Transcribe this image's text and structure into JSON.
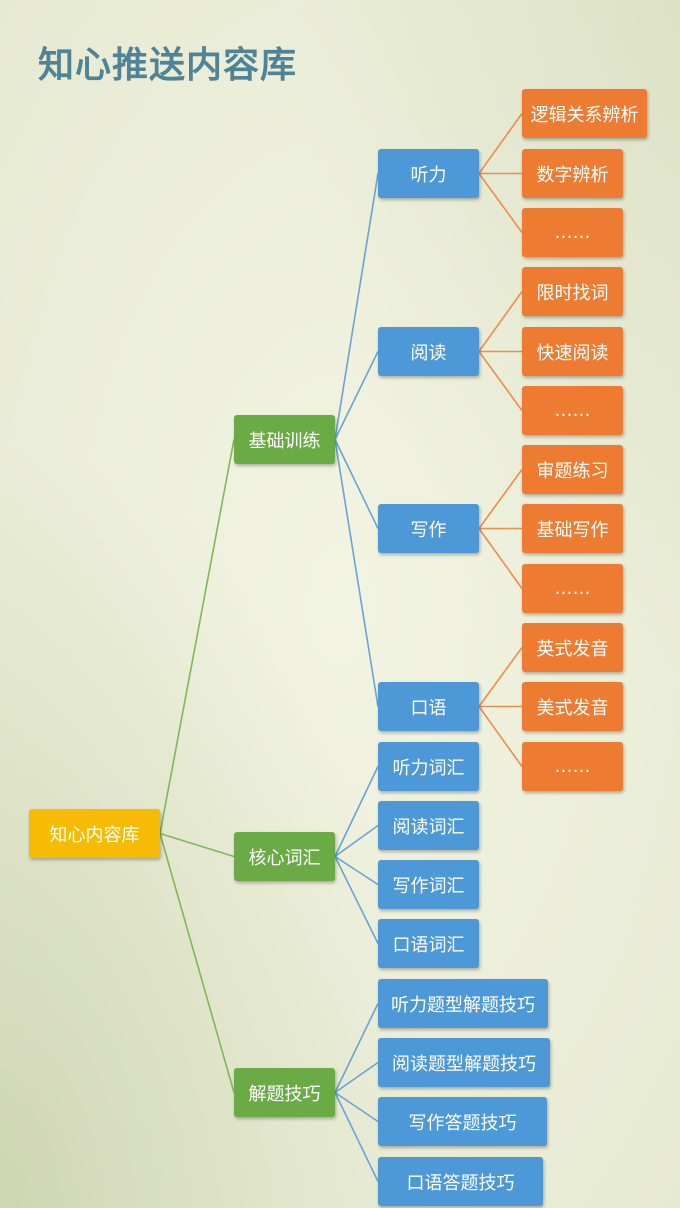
{
  "title": "知心推送内容库",
  "colors": {
    "root": "#f6bb04",
    "main": "#6aab45",
    "secondary": "#4d98d6",
    "leaf": "#ed7b31",
    "line_green": "#7fb85a",
    "line_blue": "#6aa3d6",
    "line_orange": "#ee8d4a"
  },
  "tree": {
    "label": "知心内容库",
    "children": [
      {
        "label": "基础训练",
        "children": [
          {
            "label": "听力",
            "children": [
              {
                "label": "逻辑关系辨析"
              },
              {
                "label": "数字辨析"
              },
              {
                "label": "……"
              }
            ]
          },
          {
            "label": "阅读",
            "children": [
              {
                "label": "限时找词"
              },
              {
                "label": "快速阅读"
              },
              {
                "label": "……"
              }
            ]
          },
          {
            "label": "写作",
            "children": [
              {
                "label": "审题练习"
              },
              {
                "label": "基础写作"
              },
              {
                "label": "……"
              }
            ]
          },
          {
            "label": "口语",
            "children": [
              {
                "label": "英式发音"
              },
              {
                "label": "美式发音"
              },
              {
                "label": "……"
              }
            ]
          }
        ]
      },
      {
        "label": "核心词汇",
        "children": [
          {
            "label": "听力词汇"
          },
          {
            "label": "阅读词汇"
          },
          {
            "label": "写作词汇"
          },
          {
            "label": "口语词汇"
          }
        ]
      },
      {
        "label": "解题技巧",
        "children": [
          {
            "label": "听力题型解题技巧"
          },
          {
            "label": "阅读题型解题技巧"
          },
          {
            "label": "写作答题技巧"
          },
          {
            "label": "口语答题技巧"
          }
        ]
      }
    ]
  }
}
